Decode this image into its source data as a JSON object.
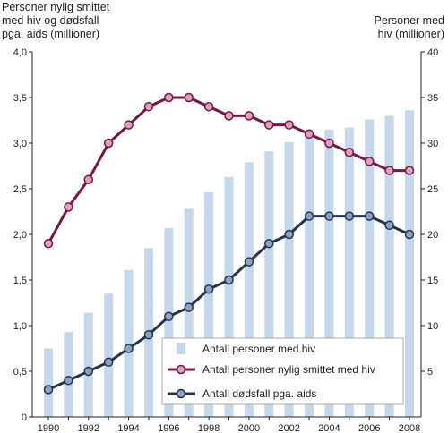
{
  "chart_data": {
    "type": "bar+line",
    "left_axis_title": [
      "Personer nylig smittet",
      "med hiv og dødsfall",
      "pga. aids (millioner)"
    ],
    "right_axis_title": [
      "Personer med",
      "hiv (millioner)"
    ],
    "years": [
      1990,
      1991,
      1992,
      1993,
      1994,
      1995,
      1996,
      1997,
      1998,
      1999,
      2000,
      2001,
      2002,
      2003,
      2004,
      2005,
      2006,
      2007,
      2008
    ],
    "x_tick_labels": [
      "1990",
      "1992",
      "1994",
      "1996",
      "1998",
      "2000",
      "2002",
      "2004",
      "2006",
      "2008"
    ],
    "left_ylim": [
      0,
      4
    ],
    "left_tick_labels": [
      "0",
      "0,5",
      "1,0",
      "1,5",
      "2,0",
      "2,5",
      "3,0",
      "3,5",
      "4,0"
    ],
    "right_ylim": [
      0,
      40
    ],
    "right_tick_labels": [
      "5",
      "10",
      "15",
      "20",
      "25",
      "30",
      "35",
      "40"
    ],
    "series": [
      {
        "name": "Antall personer med hiv",
        "kind": "bar",
        "axis": "right",
        "color": "#c5d7ea",
        "values": [
          7.5,
          9.3,
          11.4,
          13.5,
          16.1,
          18.5,
          20.7,
          22.8,
          24.6,
          26.3,
          27.9,
          29.1,
          30.1,
          30.9,
          31.5,
          31.7,
          32.6,
          33.0,
          33.6
        ]
      },
      {
        "name": "Antall personer nylig smittet med hiv",
        "kind": "line",
        "axis": "left",
        "color": "#7a1449",
        "marker_fill": "#d9a3bc",
        "values": [
          1.9,
          2.3,
          2.6,
          3.0,
          3.2,
          3.4,
          3.5,
          3.5,
          3.4,
          3.3,
          3.3,
          3.2,
          3.2,
          3.1,
          3.0,
          2.9,
          2.8,
          2.7,
          2.7
        ]
      },
      {
        "name": "Antall dødsfall pga. aids",
        "kind": "line",
        "axis": "left",
        "color": "#1f3552",
        "marker_fill": "#8fa1bf",
        "values": [
          0.3,
          0.4,
          0.5,
          0.6,
          0.75,
          0.9,
          1.1,
          1.2,
          1.4,
          1.5,
          1.7,
          1.9,
          2.0,
          2.2,
          2.2,
          2.2,
          2.2,
          2.1,
          2.0
        ]
      }
    ],
    "legend_position": "bottom-right",
    "grid": false
  }
}
